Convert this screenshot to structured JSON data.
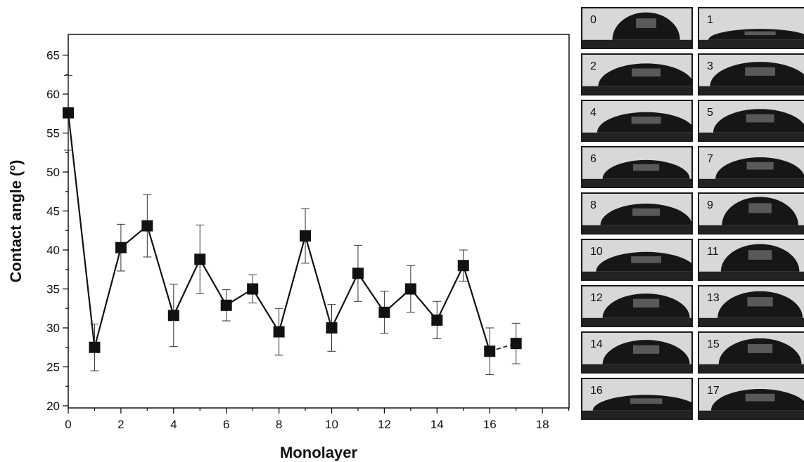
{
  "chart_data": {
    "type": "scatter",
    "title": "",
    "xlabel": "Monolayer",
    "ylabel": "Contact angle (°)",
    "xlim": [
      0,
      19
    ],
    "ylim": [
      20,
      68
    ],
    "x_ticks": [
      0,
      2,
      4,
      6,
      8,
      10,
      12,
      14,
      16,
      18
    ],
    "y_ticks": [
      20,
      25,
      30,
      35,
      40,
      45,
      50,
      55,
      60,
      65
    ],
    "grid": false,
    "series": [
      {
        "x": [
          0,
          1,
          2,
          3,
          4,
          5,
          6,
          7,
          8,
          9,
          10,
          11,
          12,
          13,
          14,
          15,
          16,
          17
        ],
        "y": [
          57.6,
          27.5,
          40.3,
          43.1,
          31.6,
          38.8,
          32.9,
          35.0,
          29.5,
          41.8,
          30.0,
          37.0,
          32.0,
          35.0,
          31.0,
          38.0,
          27.0,
          28.0
        ],
        "error": [
          4.8,
          3.0,
          3.0,
          4.0,
          4.0,
          4.4,
          2.0,
          1.8,
          3.0,
          3.5,
          3.0,
          3.6,
          2.7,
          3.0,
          2.4,
          2.0,
          3.0,
          2.6
        ],
        "line_connected_to_index": 16,
        "marker": "square",
        "color": "#111111"
      }
    ]
  },
  "gallery": {
    "labels": [
      "0",
      "1",
      "2",
      "3",
      "4",
      "5",
      "6",
      "7",
      "8",
      "9",
      "10",
      "11",
      "12",
      "13",
      "14",
      "15",
      "16",
      "17"
    ],
    "description_colors": {
      "background": "#d8d8d8",
      "drop": "#161616",
      "substrate": "#222222"
    }
  }
}
